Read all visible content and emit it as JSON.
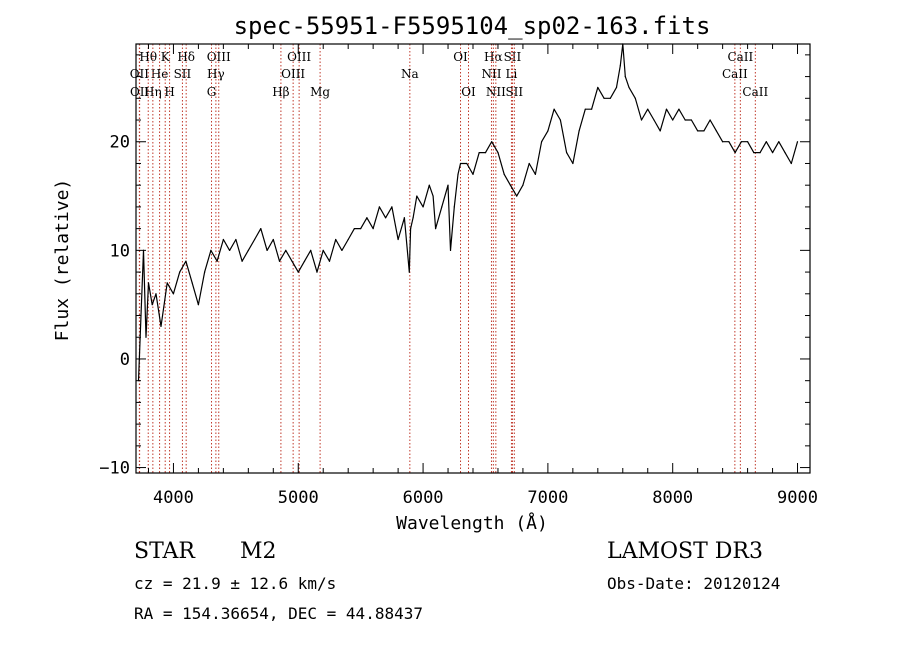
{
  "chart_data": {
    "type": "line",
    "title": "spec-55951-F5595104_sp02-163.fits",
    "xlabel": "Wavelength (Å)",
    "ylabel": "Flux (relative)",
    "xlim": [
      3700,
      9100
    ],
    "ylim": [
      -10.5,
      29
    ],
    "xticks": [
      4000,
      5000,
      6000,
      7000,
      8000,
      9000
    ],
    "yticks": [
      -10,
      0,
      10,
      20
    ],
    "series": [
      {
        "name": "spectrum",
        "color": "#000000",
        "x": [
          3720,
          3740,
          3760,
          3780,
          3800,
          3830,
          3860,
          3900,
          3950,
          4000,
          4050,
          4100,
          4150,
          4200,
          4250,
          4300,
          4350,
          4400,
          4450,
          4500,
          4550,
          4600,
          4650,
          4700,
          4750,
          4800,
          4850,
          4900,
          4950,
          5000,
          5050,
          5100,
          5150,
          5200,
          5250,
          5300,
          5350,
          5400,
          5450,
          5500,
          5550,
          5600,
          5650,
          5700,
          5750,
          5800,
          5850,
          5890,
          5900,
          5920,
          5950,
          6000,
          6050,
          6080,
          6100,
          6150,
          6200,
          6220,
          6250,
          6280,
          6300,
          6350,
          6400,
          6450,
          6500,
          6550,
          6600,
          6650,
          6700,
          6750,
          6800,
          6850,
          6900,
          6950,
          7000,
          7050,
          7100,
          7150,
          7200,
          7250,
          7300,
          7350,
          7400,
          7450,
          7500,
          7550,
          7580,
          7600,
          7620,
          7650,
          7700,
          7750,
          7800,
          7850,
          7900,
          7950,
          8000,
          8050,
          8100,
          8150,
          8200,
          8250,
          8300,
          8350,
          8400,
          8450,
          8500,
          8550,
          8600,
          8650,
          8700,
          8750,
          8800,
          8850,
          8900,
          8950,
          9000
        ],
        "y": [
          -2,
          4,
          10,
          2,
          7,
          5,
          6,
          3,
          7,
          6,
          8,
          9,
          7,
          5,
          8,
          10,
          9,
          11,
          10,
          11,
          9,
          10,
          11,
          12,
          10,
          11,
          9,
          10,
          9,
          8,
          9,
          10,
          8,
          10,
          9,
          11,
          10,
          11,
          12,
          12,
          13,
          12,
          14,
          13,
          14,
          11,
          13,
          8,
          12,
          13,
          15,
          14,
          16,
          15,
          12,
          14,
          16,
          10,
          14,
          17,
          18,
          18,
          17,
          19,
          19,
          20,
          19,
          17,
          16,
          15,
          16,
          18,
          17,
          20,
          21,
          23,
          22,
          19,
          18,
          21,
          23,
          23,
          25,
          24,
          24,
          25,
          27,
          29,
          26,
          25,
          24,
          22,
          23,
          22,
          21,
          23,
          22,
          23,
          22,
          22,
          21,
          21,
          22,
          21,
          20,
          20,
          19,
          20,
          20,
          19,
          19,
          20,
          19,
          20,
          19,
          18,
          20
        ]
      }
    ],
    "line_markers": [
      {
        "label": "Hθ",
        "wavelength": 3798,
        "row": 1
      },
      {
        "label": "OII",
        "wavelength": 3727,
        "row": 2
      },
      {
        "label": "OII",
        "wavelength": 3729,
        "row": 3
      },
      {
        "label": "He",
        "wavelength": 3889,
        "row": 2
      },
      {
        "label": "Hη",
        "wavelength": 3835,
        "row": 3
      },
      {
        "label": "K",
        "wavelength": 3934,
        "row": 1
      },
      {
        "label": "H",
        "wavelength": 3969,
        "row": 3
      },
      {
        "label": "Hδ",
        "wavelength": 4102,
        "row": 1
      },
      {
        "label": "SII",
        "wavelength": 4072,
        "row": 2
      },
      {
        "label": "OIII",
        "wavelength": 4363,
        "row": 1
      },
      {
        "label": "Hγ",
        "wavelength": 4340,
        "row": 2
      },
      {
        "label": "G",
        "wavelength": 4305,
        "row": 3
      },
      {
        "label": "Hβ",
        "wavelength": 4861,
        "row": 3
      },
      {
        "label": "OIII",
        "wavelength": 5007,
        "row": 1
      },
      {
        "label": "OIII",
        "wavelength": 4959,
        "row": 2
      },
      {
        "label": "Mg",
        "wavelength": 5175,
        "row": 3
      },
      {
        "label": "Na",
        "wavelength": 5894,
        "row": 2
      },
      {
        "label": "OI",
        "wavelength": 6300,
        "row": 1
      },
      {
        "label": "OI",
        "wavelength": 6364,
        "row": 3
      },
      {
        "label": "Hα",
        "wavelength": 6563,
        "row": 1
      },
      {
        "label": "NII",
        "wavelength": 6548,
        "row": 2
      },
      {
        "label": "NII",
        "wavelength": 6583,
        "row": 3
      },
      {
        "label": "SII",
        "wavelength": 6716,
        "row": 1
      },
      {
        "label": "Li",
        "wavelength": 6708,
        "row": 2
      },
      {
        "label": "SII",
        "wavelength": 6731,
        "row": 3
      },
      {
        "label": "CaII",
        "wavelength": 8542,
        "row": 1
      },
      {
        "label": "CaII",
        "wavelength": 8498,
        "row": 2
      },
      {
        "label": "CaII",
        "wavelength": 8662,
        "row": 3
      }
    ],
    "marker_color": "#c0392b"
  },
  "info": {
    "object_class": "STAR",
    "subclass": "M2",
    "survey": "LAMOST DR3",
    "cz": "cz = 21.9 ± 12.6 km/s",
    "obs_date": "Obs-Date: 20120124",
    "coords": "RA = 154.36654, DEC =  44.88437"
  }
}
